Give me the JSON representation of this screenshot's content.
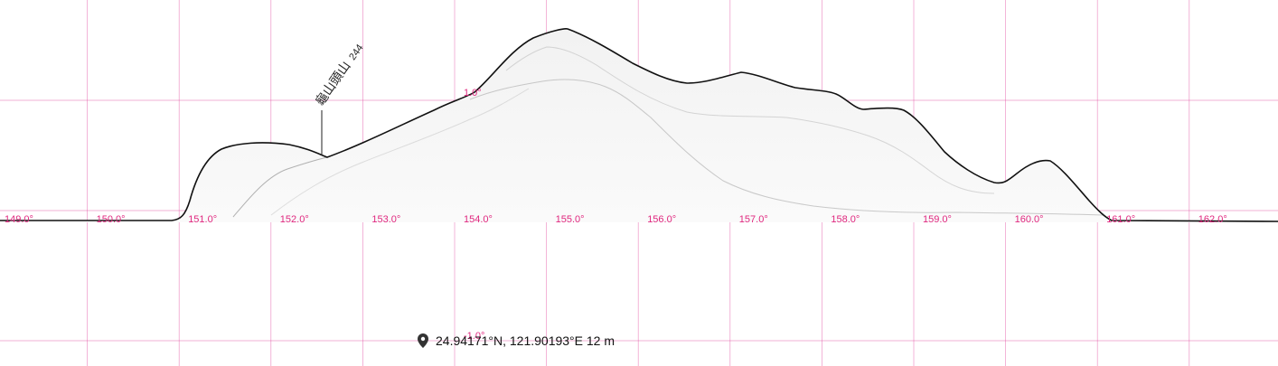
{
  "x_axis": {
    "unit": "°",
    "ticks": [
      "149.0°",
      "150.0°",
      "151.0°",
      "152.0°",
      "153.0°",
      "154.0°",
      "155.0°",
      "156.0°",
      "157.0°",
      "158.0°",
      "159.0°",
      "160.0°",
      "161.0°",
      "162.0°"
    ],
    "tick_values": [
      149,
      150,
      151,
      152,
      153,
      154,
      155,
      156,
      157,
      158,
      159,
      160,
      161,
      162
    ]
  },
  "y_axis": {
    "ticks": [
      "1.0°",
      "-1.0°"
    ],
    "tick_values": [
      1.0,
      -1.0
    ]
  },
  "peak": {
    "name": "龜山頭山",
    "elevation": "244"
  },
  "location": {
    "icon": "map-pin-icon",
    "text": "24.94171°N, 121.90193°E 12 m"
  },
  "colors": {
    "grid": "#e0409a",
    "label": "#e0287f",
    "ridge": "#111111"
  }
}
